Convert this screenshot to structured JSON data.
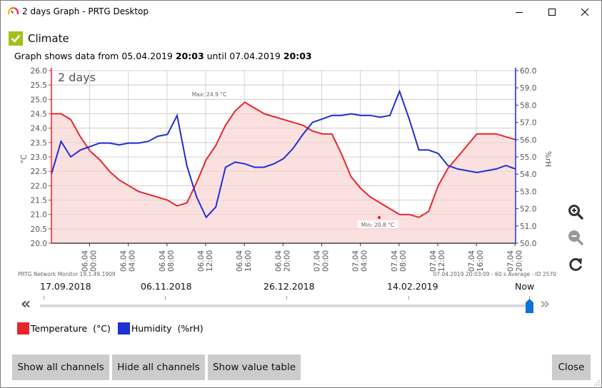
{
  "window": {
    "title": "2 days Graph - PRTG Desktop",
    "controls": {
      "minimize": "minimize",
      "maximize": "maximize",
      "close": "close"
    }
  },
  "header": {
    "sensor_name": "Climate",
    "status_color": "#a4c11b",
    "range_prefix": "Graph shows data from ",
    "range_from_date": "05.04.2019 ",
    "range_from_time": "20:03",
    "range_mid": " until ",
    "range_to_date": "07.04.2019 ",
    "range_to_time": "20:03"
  },
  "chart_data": {
    "type": "line",
    "title": "2 days",
    "xlabel": "",
    "ylabel": "°C",
    "ylabel_right": "%rH",
    "ylim": [
      20.0,
      26.0
    ],
    "ylim_right": [
      50.0,
      60.0
    ],
    "y_ticks": [
      "26.0",
      "25.5",
      "25.0",
      "24.5",
      "24.0",
      "23.5",
      "23.0",
      "22.5",
      "22.0",
      "21.5",
      "21.0",
      "20.5",
      "20.0"
    ],
    "y_ticks_right": [
      "60.0",
      "59.0",
      "58.0",
      "57.0",
      "56.0",
      "55.0",
      "54.0",
      "53.0",
      "52.0",
      "51.0",
      "50.0"
    ],
    "x_ticks": [
      {
        "date": "06.04",
        "time": "00:00"
      },
      {
        "date": "06.04",
        "time": "04:00"
      },
      {
        "date": "06.04",
        "time": "08:00"
      },
      {
        "date": "06.04",
        "time": "12:00"
      },
      {
        "date": "06.04",
        "time": "16:00"
      },
      {
        "date": "06.04",
        "time": "20:00"
      },
      {
        "date": "07.04",
        "time": "00:00"
      },
      {
        "date": "07.04",
        "time": "04:00"
      },
      {
        "date": "07.04",
        "time": "08:00"
      },
      {
        "date": "07.04",
        "time": "12:00"
      },
      {
        "date": "07.04",
        "time": "16:00"
      },
      {
        "date": "07.04",
        "time": "20:00"
      }
    ],
    "grid": true,
    "legend_position": "bottom",
    "annotations": [
      {
        "text": "Max: 24.9 °C",
        "x": "06.04 12:00",
        "y": 24.9
      },
      {
        "text": "Min: 20.8 °C",
        "x": "07.04 06:00",
        "y": 20.8
      }
    ],
    "x_hours": [
      0,
      1,
      2,
      3,
      4,
      5,
      6,
      7,
      8,
      9,
      10,
      11,
      12,
      13,
      14,
      15,
      16,
      17,
      18,
      19,
      20,
      21,
      22,
      23,
      24,
      25,
      26,
      27,
      28,
      29,
      30,
      31,
      32,
      33,
      34,
      35,
      36,
      37,
      38,
      39,
      40,
      41,
      42,
      43,
      44,
      45,
      46,
      47,
      48
    ],
    "series": [
      {
        "name": "Temperature",
        "unit": "°C",
        "color": "#e8262a",
        "axis": "left",
        "values": [
          24.5,
          24.5,
          24.3,
          23.7,
          23.2,
          22.9,
          22.5,
          22.2,
          22.0,
          21.8,
          21.7,
          21.6,
          21.5,
          21.3,
          21.4,
          22.1,
          22.9,
          23.4,
          24.1,
          24.6,
          24.9,
          24.7,
          24.5,
          24.4,
          24.3,
          24.2,
          24.1,
          23.9,
          23.8,
          23.8,
          23.1,
          22.3,
          21.9,
          21.6,
          21.4,
          21.2,
          21.0,
          21.0,
          20.9,
          21.1,
          22.0,
          22.6,
          23.0,
          23.4,
          23.8,
          23.8,
          23.8,
          23.7,
          23.6
        ]
      },
      {
        "name": "Humidity",
        "unit": "%rH",
        "color": "#1f2fd6",
        "axis": "right",
        "values": [
          54.0,
          55.9,
          55.0,
          55.4,
          55.6,
          55.8,
          55.8,
          55.7,
          55.8,
          55.8,
          55.9,
          56.2,
          56.3,
          57.4,
          54.5,
          52.7,
          51.5,
          52.1,
          54.4,
          54.7,
          54.6,
          54.4,
          54.4,
          54.6,
          54.9,
          55.5,
          56.3,
          57.0,
          57.2,
          57.4,
          57.4,
          57.5,
          57.4,
          57.4,
          57.3,
          57.4,
          58.8,
          57.2,
          55.4,
          55.4,
          55.2,
          54.5,
          54.3,
          54.2,
          54.1,
          54.2,
          54.3,
          54.5,
          54.3
        ]
      }
    ]
  },
  "chart_footer": {
    "left": "PRTG Network Monitor 19.1.49.1909",
    "right": "07.04.2019 20:03:09 - 60 s Average - ID 2570"
  },
  "zoom_controls": [
    {
      "name": "zoom-in-icon",
      "label": "Zoom in"
    },
    {
      "name": "zoom-out-icon",
      "label": "Zoom out"
    },
    {
      "name": "refresh-icon",
      "label": "Reset"
    }
  ],
  "timeline": {
    "labels": [
      "17.09.2018",
      "06.11.2018",
      "26.12.2018",
      "14.02.2019",
      "Now"
    ],
    "prev": "«",
    "next": "»",
    "thumb_color": "#0a74d8"
  },
  "legend": [
    {
      "label": "Temperature  (°C)",
      "color": "#e8262a"
    },
    {
      "label": "Humidity  (%rH)",
      "color": "#1f2fd6"
    }
  ],
  "buttons": {
    "show_all": "Show all channels",
    "hide_all": "Hide all channels",
    "value_table": "Show value table",
    "close": "Close"
  }
}
